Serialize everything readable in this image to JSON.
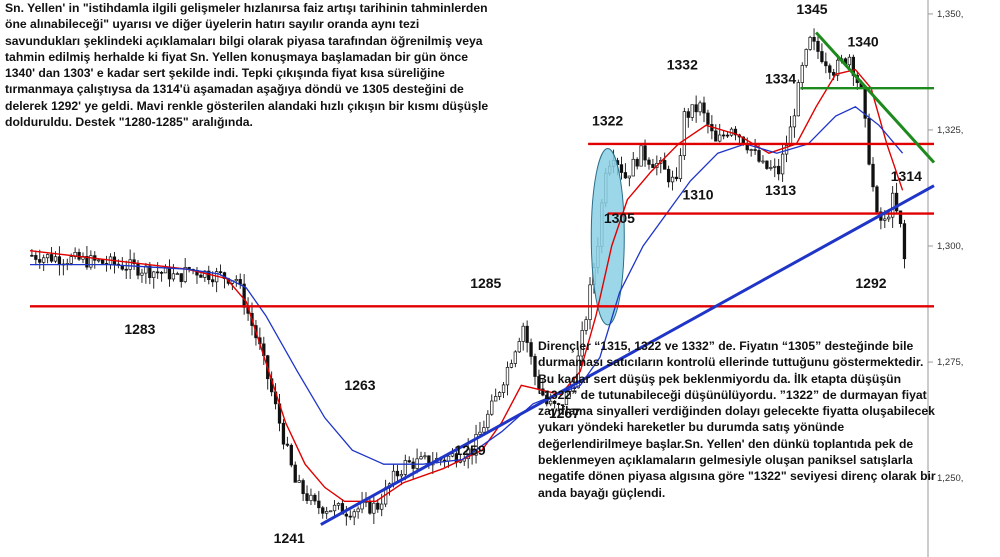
{
  "notes": {
    "top": "Sn. Yellen' in \"istihdamla ilgili gelişmeler hızlanırsa faiz artışı tarihinin tahminlerden öne alınabileceği\" uyarısı ve diğer üyelerin hatırı sayılır oranda aynı tezi savundukları şeklindeki açıklamaları bilgi olarak piyasa tarafından öğrenilmiş veya tahmin edilmiş herhalde ki fiyat Sn. Yellen konuşmaya başlamadan bir gün önce 1340' dan 1303' e kadar sert şekilde indi. Tepki çıkışında fiyat kısa süreliğine tırmanmaya çalıştıysa da 1314'ü aşamadan aşağıya döndü ve 1305 desteğini de delerek 1292' ye geldi. Mavi renkle gösterilen alandaki hızlı çıkışın bir kısmı düşüşle dolduruldu. Destek \"1280-1285\" aralığında.",
    "bottom": "Dirençler “1315, 1322 ve 1332” de. Fiyatın “1305” desteğinde bile durmaması satıcıların kontrolü ellerinde tuttuğunu göstermektedir. Bu kadar sert düşüş pek beklenmiyordu da. İlk etapta düşüşün “1322” de tutunabileceği düşünülüyordu. ”1322” de durmayan fiyat zayıflama sinyalleri verdiğinden dolayı gelecekte fiyatta oluşabilecek yukarı yöndeki hareketler  bu durumda satış yönünde değerlendirilmeye başlar.Sn. Yellen' den dünkü toplantıda pek de beklenmeyen açıklamaların gelmesiyle oluşan paniksel satışlarla negatife dönen piyasa algısına göre \"1322\" seviyesi direnç olarak bir anda bayağı güçlendi."
  },
  "chart_data": {
    "type": "candlestick",
    "y_axis": {
      "min": 1233,
      "max": 1353,
      "ticks": [
        "1,350,",
        "1,325,",
        "1,300,",
        "1,275,",
        "1,250,"
      ],
      "tick_values": [
        1350,
        1325,
        1300,
        1275,
        1250
      ],
      "position": "right"
    },
    "bar_count": 230,
    "price_path": [
      [
        0,
        1298
      ],
      [
        12,
        1297
      ],
      [
        22,
        1296
      ],
      [
        35,
        1294
      ],
      [
        37,
        1293
      ],
      [
        40,
        1295
      ],
      [
        45,
        1294
      ],
      [
        52,
        1293
      ],
      [
        58,
        1278
      ],
      [
        63,
        1262
      ],
      [
        67,
        1249
      ],
      [
        72,
        1244
      ],
      [
        80,
        1243
      ],
      [
        88,
        1244
      ],
      [
        92,
        1250
      ],
      [
        95,
        1253
      ],
      [
        104,
        1254
      ],
      [
        112,
        1256
      ],
      [
        118,
        1267
      ],
      [
        122,
        1276
      ],
      [
        125,
        1283
      ],
      [
        128,
        1272
      ],
      [
        131,
        1266
      ],
      [
        134,
        1265
      ],
      [
        138,
        1271
      ],
      [
        141,
        1285
      ],
      [
        144,
        1301
      ],
      [
        146,
        1317
      ],
      [
        148,
        1320
      ],
      [
        151,
        1315
      ],
      [
        155,
        1320
      ],
      [
        160,
        1317
      ],
      [
        164,
        1313
      ],
      [
        166,
        1328
      ],
      [
        170,
        1330
      ],
      [
        174,
        1322
      ],
      [
        178,
        1326
      ],
      [
        182,
        1322
      ],
      [
        186,
        1317
      ],
      [
        190,
        1316
      ],
      [
        193,
        1325
      ],
      [
        196,
        1338
      ],
      [
        198,
        1344
      ],
      [
        200,
        1342
      ],
      [
        204,
        1338
      ],
      [
        208,
        1341
      ],
      [
        211,
        1333
      ],
      [
        213,
        1319
      ],
      [
        215,
        1306
      ],
      [
        217,
        1305
      ],
      [
        219,
        1310
      ],
      [
        221,
        1304
      ],
      [
        222,
        1297
      ]
    ],
    "ema_red": [
      [
        0,
        1299
      ],
      [
        20,
        1297
      ],
      [
        40,
        1295
      ],
      [
        50,
        1293
      ],
      [
        55,
        1288
      ],
      [
        60,
        1275
      ],
      [
        65,
        1262
      ],
      [
        70,
        1253
      ],
      [
        75,
        1248
      ],
      [
        80,
        1245
      ],
      [
        88,
        1245
      ],
      [
        95,
        1249
      ],
      [
        105,
        1252
      ],
      [
        115,
        1256
      ],
      [
        120,
        1262
      ],
      [
        125,
        1270
      ],
      [
        130,
        1269
      ],
      [
        135,
        1268
      ],
      [
        140,
        1273
      ],
      [
        144,
        1285
      ],
      [
        148,
        1300
      ],
      [
        152,
        1310
      ],
      [
        158,
        1316
      ],
      [
        165,
        1322
      ],
      [
        172,
        1326
      ],
      [
        180,
        1324
      ],
      [
        188,
        1320
      ],
      [
        195,
        1322
      ],
      [
        200,
        1330
      ],
      [
        205,
        1337
      ],
      [
        210,
        1338
      ],
      [
        214,
        1334
      ],
      [
        218,
        1322
      ],
      [
        222,
        1312
      ]
    ],
    "ema_blue": [
      [
        0,
        1296
      ],
      [
        20,
        1296
      ],
      [
        40,
        1295
      ],
      [
        48,
        1294
      ],
      [
        55,
        1291
      ],
      [
        60,
        1285
      ],
      [
        68,
        1273
      ],
      [
        75,
        1263
      ],
      [
        82,
        1256
      ],
      [
        90,
        1253
      ],
      [
        100,
        1253
      ],
      [
        110,
        1254
      ],
      [
        120,
        1260
      ],
      [
        128,
        1266
      ],
      [
        134,
        1268
      ],
      [
        140,
        1270
      ],
      [
        145,
        1276
      ],
      [
        150,
        1290
      ],
      [
        156,
        1300
      ],
      [
        162,
        1307
      ],
      [
        168,
        1314
      ],
      [
        175,
        1320
      ],
      [
        182,
        1322
      ],
      [
        190,
        1320
      ],
      [
        198,
        1322
      ],
      [
        205,
        1328
      ],
      [
        210,
        1330
      ],
      [
        216,
        1326
      ],
      [
        222,
        1320
      ]
    ],
    "horizontal_lines": [
      {
        "value": 1287,
        "color": "#e00000",
        "from": 0,
        "to": 230
      },
      {
        "value": 1307,
        "color": "#e00000",
        "from": 147,
        "to": 230
      },
      {
        "value": 1322,
        "color": "#e00000",
        "from": 142,
        "to": 230
      },
      {
        "value": 1334,
        "color": "#1d8a1d",
        "from": 196,
        "to": 230
      }
    ],
    "trend_lines": [
      {
        "color": "#1f35c8",
        "from": [
          74,
          1240
        ],
        "to": [
          230,
          1313
        ]
      },
      {
        "color": "#1d8a1d",
        "from": [
          200,
          1346
        ],
        "to": [
          230,
          1318
        ]
      }
    ],
    "highlight": {
      "shape": "ellipse",
      "color": "#8ad0e4",
      "x_center": 147,
      "y_center": 1302,
      "x_halfwidth": 4.2,
      "y_halfheight": 19
    },
    "annotations": [
      {
        "text": "1345",
        "x": 195,
        "y": 1350
      },
      {
        "text": "1340",
        "x": 208,
        "y": 1343
      },
      {
        "text": "1334",
        "x": 187,
        "y": 1335
      },
      {
        "text": "1332",
        "x": 162,
        "y": 1338
      },
      {
        "text": "1322",
        "x": 143,
        "y": 1326
      },
      {
        "text": "1314",
        "x": 219,
        "y": 1314
      },
      {
        "text": "1313",
        "x": 187,
        "y": 1311
      },
      {
        "text": "1310",
        "x": 166,
        "y": 1310
      },
      {
        "text": "1305",
        "x": 146,
        "y": 1305
      },
      {
        "text": "1292",
        "x": 210,
        "y": 1291
      },
      {
        "text": "1285",
        "x": 112,
        "y": 1291
      },
      {
        "text": "1283",
        "x": 24,
        "y": 1281
      },
      {
        "text": "1267",
        "x": 132,
        "y": 1263
      },
      {
        "text": "1263",
        "x": 80,
        "y": 1269
      },
      {
        "text": "1259",
        "x": 108,
        "y": 1255
      },
      {
        "text": "1241",
        "x": 62,
        "y": 1236
      }
    ],
    "colors": {
      "candle": "#111111",
      "ema_red": "#e00000",
      "ema_blue": "#1f35c8"
    }
  }
}
